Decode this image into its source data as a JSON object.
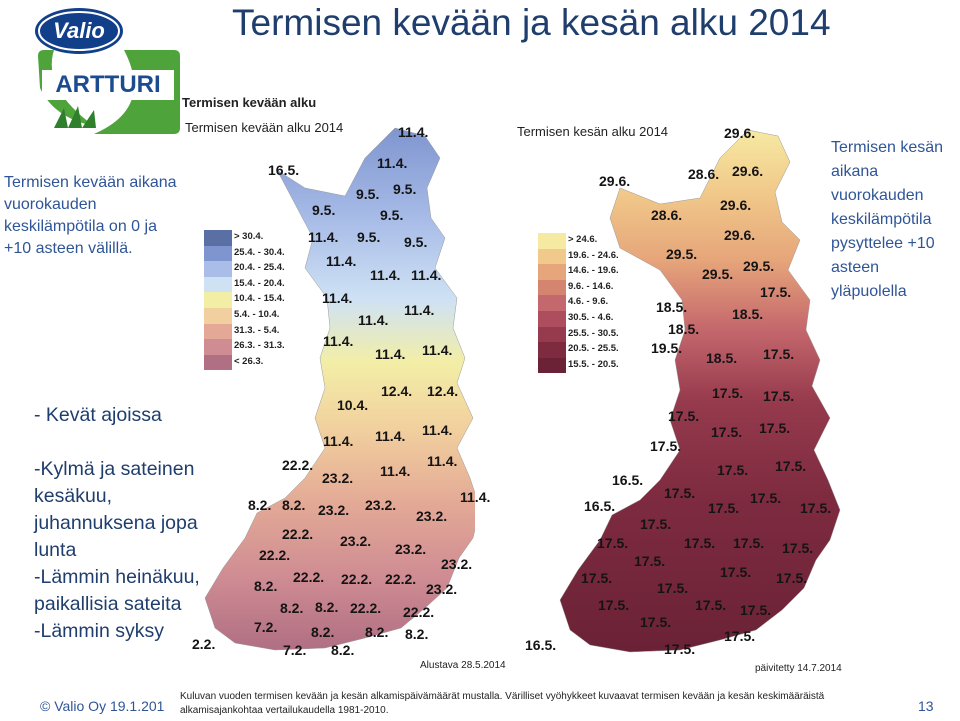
{
  "title": "Termisen kevään ja kesän alku 2014",
  "logo": {
    "brand": "Valio",
    "product": "ARTTURI"
  },
  "left_note": "Termisen kevään aikana vuorokauden keskilämpötila on 0 ja +10 asteen välillä.",
  "right_note": "Termisen kesän aikana vuorokauden keskilämpötila pysyttelee +10 asteen yläpuolella",
  "bullets": [
    "- Kevät ajoissa",
    "",
    "-Kylmä ja sateinen",
    "kesäkuu,",
    "juhannuksena jopa",
    "lunta",
    "-Lämmin heinäkuu,",
    "paikallisia sateita",
    "-Lämmin syksy"
  ],
  "spring_map": {
    "heading": "Termisen kevään alku",
    "subtitle": "Termisen kevään alku 2014",
    "legend": [
      {
        "label": "> 30.4.",
        "color": "#5a6fa3"
      },
      {
        "label": "25.4. - 30.4.",
        "color": "#7f95cf"
      },
      {
        "label": "20.4. - 25.4.",
        "color": "#a9bde8"
      },
      {
        "label": "15.4. - 20.4.",
        "color": "#cfe2f4"
      },
      {
        "label": "10.4. - 15.4.",
        "color": "#f3eea6"
      },
      {
        "label": "5.4. - 10.4.",
        "color": "#f1cf9e"
      },
      {
        "label": "31.3. - 5.4.",
        "color": "#e3a996"
      },
      {
        "label": "26.3. - 31.3.",
        "color": "#cf8c93"
      },
      {
        "label": "< 26.3.",
        "color": "#b06f83"
      }
    ],
    "dates": [
      "11.4.",
      "16.5.",
      "11.4.",
      "9.5.",
      "9.5.",
      "9.5.",
      "9.5.",
      "11.4.",
      "9.5.",
      "9.5.",
      "11.4.",
      "11.4.",
      "11.4.",
      "11.4.",
      "11.4.",
      "11.4.",
      "11.4.",
      "11.4.",
      "11.4.",
      "12.4.",
      "12.4.",
      "10.4.",
      "11.4.",
      "11.4.",
      "11.4.",
      "22.2.",
      "23.2.",
      "11.4.",
      "11.4.",
      "8.2.",
      "8.2.",
      "23.2.",
      "23.2.",
      "11.4.",
      "23.2.",
      "22.2.",
      "23.2.",
      "23.2.",
      "22.2.",
      "23.2.",
      "8.2.",
      "22.2.",
      "22.2.",
      "22.2.",
      "23.2.",
      "8.2.",
      "8.2.",
      "22.2.",
      "22.2.",
      "7.2.",
      "8.2.",
      "8.2.",
      "8.2.",
      "7.2.",
      "8.2.",
      "2.2."
    ],
    "note": "Alustava 28.5.2014"
  },
  "summer_map": {
    "subtitle": "Termisen kesän alku 2014",
    "legend": [
      {
        "label": "> 24.6.",
        "color": "#f6e9a2"
      },
      {
        "label": "19.6. - 24.6.",
        "color": "#f1c98a"
      },
      {
        "label": "14.6. - 19.6.",
        "color": "#e6a57a"
      },
      {
        "label": "9.6. - 14.6.",
        "color": "#d58470"
      },
      {
        "label": "4.6. - 9.6.",
        "color": "#c5686d"
      },
      {
        "label": "30.5. - 4.6.",
        "color": "#ae4d5d"
      },
      {
        "label": "25.5. - 30.5.",
        "color": "#963a4d"
      },
      {
        "label": "20.5. - 25.5.",
        "color": "#7e2b40"
      },
      {
        "label": "15.5. - 20.5.",
        "color": "#6b2236"
      }
    ],
    "dates": [
      "29.6.",
      "29.6.",
      "28.6.",
      "29.6.",
      "28.6.",
      "29.6.",
      "29.6.",
      "29.5.",
      "29.5.",
      "29.5.",
      "17.5.",
      "18.5.",
      "18.5.",
      "18.5.",
      "19.5.",
      "18.5.",
      "17.5.",
      "17.5.",
      "17.5.",
      "17.5.",
      "17.5.",
      "17.5.",
      "17.5.",
      "17.5.",
      "17.5.",
      "16.5.",
      "17.5.",
      "17.5.",
      "16.5.",
      "17.5.",
      "17.5.",
      "17.5.",
      "17.5.",
      "17.5.",
      "17.5.",
      "17.5.",
      "17.5.",
      "17.5.",
      "17.5.",
      "17.5.",
      "17.5.",
      "17.5.",
      "17.5.",
      "17.5.",
      "17.5.",
      "16.5.",
      "17.5.",
      "17.5."
    ],
    "note": "päivitetty 14.7.2014"
  },
  "footer": "© Valio Oy 19.1.201",
  "caption": "Kuluvan vuoden termisen kevään ja kesän alkamispäivämäärät mustalla. Värilliset vyöhykkeet kuvaavat termisen kevään ja kesän keskimääräistä alkamisajankohtaa vertailukaudella 1981-2010.",
  "page_number": "13"
}
